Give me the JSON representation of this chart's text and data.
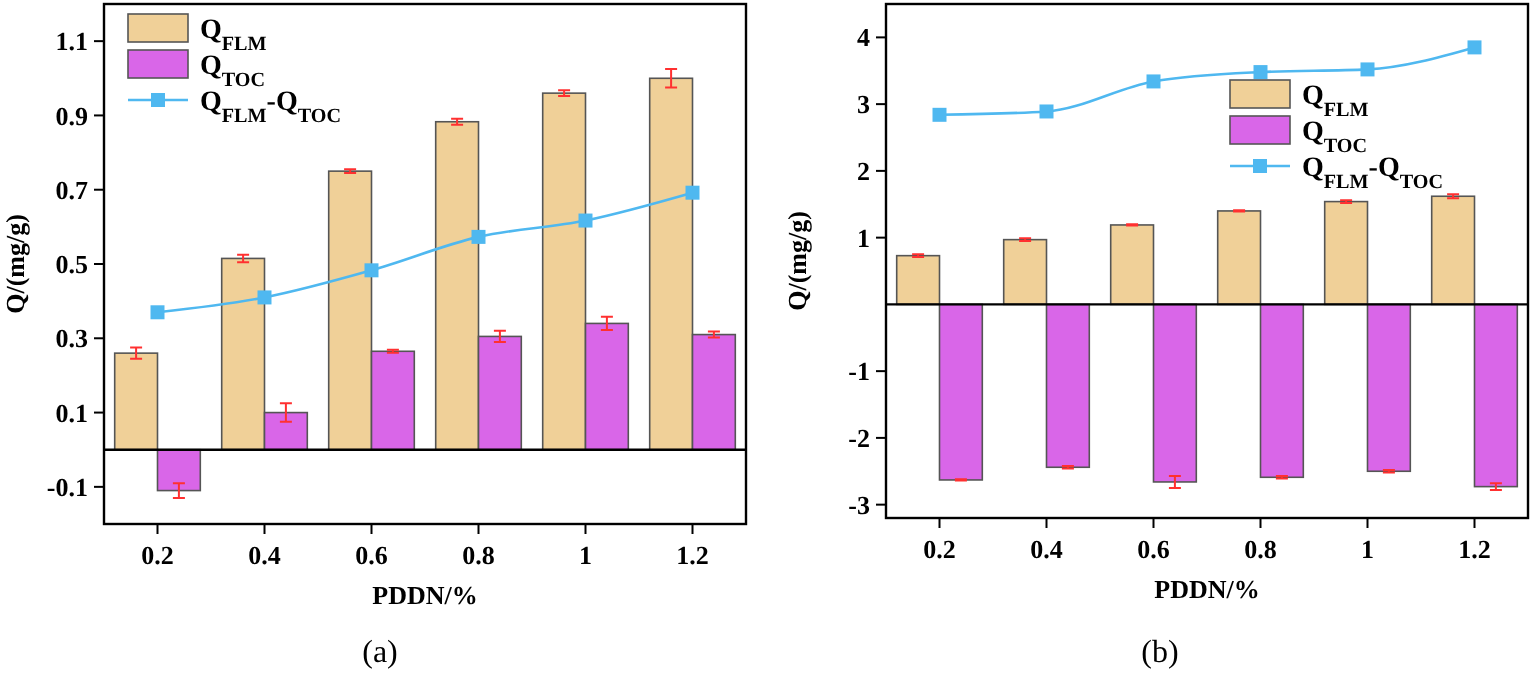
{
  "chart_data": [
    {
      "type": "bar",
      "xlabel": "PDDN/%",
      "ylabel": "Q/(mg/g)",
      "x": [
        0.2,
        0.4,
        0.6,
        0.8,
        1,
        1.2
      ],
      "xlim": [
        0.1,
        1.3
      ],
      "xticks": [
        0.2,
        0.4,
        0.6,
        0.8,
        1,
        1.2
      ],
      "ylim": [
        -0.2,
        1.2
      ],
      "yticks": [
        -0.1,
        0.1,
        0.3,
        0.5,
        0.7,
        0.9,
        1.1
      ],
      "legend": "top left",
      "grid": false,
      "marker": "square",
      "annotations": [
        "(a)"
      ],
      "ref_lines": [
        {
          "axis": "y",
          "value": 0,
          "color": "#000000"
        }
      ],
      "series": [
        {
          "name": "Q$_{FLM}$",
          "color": "#f0d098",
          "values": [
            0.26,
            0.515,
            0.75,
            0.883,
            0.96,
            1.0
          ],
          "errors": [
            0.015,
            0.01,
            0.005,
            0.008,
            0.008,
            0.025
          ]
        },
        {
          "name": "Q$_{TOC}$",
          "color": "#d966e8",
          "values": [
            -0.11,
            0.1,
            0.265,
            0.305,
            0.34,
            0.31
          ],
          "errors": [
            0.02,
            0.025,
            0.004,
            0.015,
            0.018,
            0.008
          ]
        },
        {
          "name": "Q$_{FLM}$-Q$_{TOC}$",
          "type": "line",
          "color": "#4fb8f0",
          "values": [
            0.37,
            0.41,
            0.483,
            0.573,
            0.617,
            0.692
          ]
        }
      ]
    },
    {
      "type": "bar",
      "xlabel": "PDDN/%",
      "ylabel": "Q/(mg/g)",
      "x": [
        0.2,
        0.4,
        0.6,
        0.8,
        1,
        1.2
      ],
      "xlim": [
        0.1,
        1.3
      ],
      "xticks": [
        0.2,
        0.4,
        0.6,
        0.8,
        1,
        1.2
      ],
      "ylim": [
        -3.2,
        4.5
      ],
      "yticks": [
        -3,
        -2,
        -1,
        1,
        2,
        3,
        4
      ],
      "legend": "top right",
      "grid": false,
      "marker": "square",
      "annotations": [
        "(b)"
      ],
      "ref_lines": [
        {
          "axis": "y",
          "value": 0,
          "color": "#000000"
        }
      ],
      "series": [
        {
          "name": "Q$_{FLM}$",
          "color": "#f0d098",
          "values": [
            0.73,
            0.97,
            1.19,
            1.4,
            1.54,
            1.62
          ],
          "errors": [
            0.02,
            0.02,
            0.01,
            0.01,
            0.02,
            0.03
          ]
        },
        {
          "name": "Q$_{TOC}$",
          "color": "#d966e8",
          "values": [
            -2.63,
            -2.44,
            -2.66,
            -2.59,
            -2.5,
            -2.73
          ],
          "errors": [
            0.01,
            0.02,
            0.09,
            0.02,
            0.02,
            0.05
          ]
        },
        {
          "name": "Q$_{FLM}$-Q$_{TOC}$",
          "type": "line",
          "color": "#4fb8f0",
          "values": [
            2.84,
            2.89,
            3.34,
            3.48,
            3.52,
            3.85
          ]
        }
      ]
    }
  ]
}
